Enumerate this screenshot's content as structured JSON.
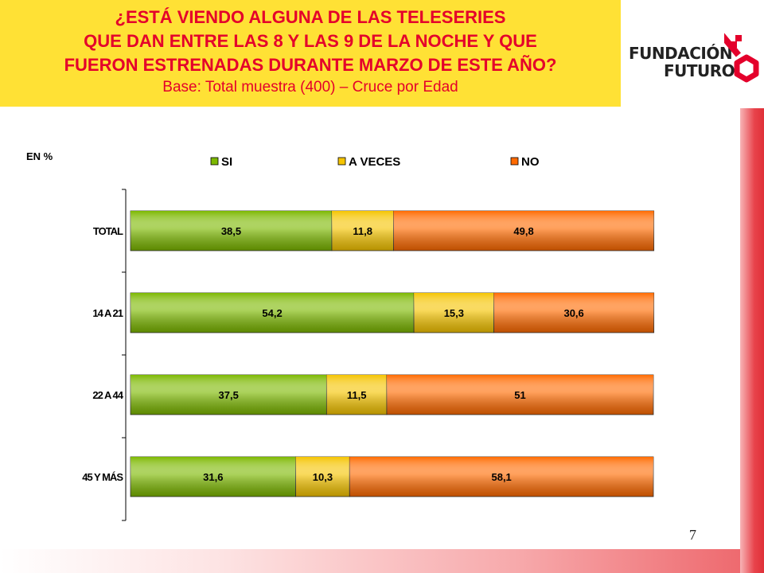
{
  "header": {
    "title_lines": [
      "¿ESTÁ VIENDO ALGUNA DE LAS TELESERIES",
      "QUE DAN ENTRE LAS 8 Y LAS 9 DE LA NOCHE Y QUE",
      "FUERON ESTRENADAS DURANTE MARZO DE ESTE AÑO?"
    ],
    "subtitle": "Base: Total muestra (400) – Cruce por Edad",
    "background_color": "#ffe135",
    "text_color": "#e4002b"
  },
  "logo": {
    "line1": "FUNDACIÓN",
    "line2": "FUTURO",
    "icon": "key-icon",
    "accent_color": "#e4002b"
  },
  "page_number": "7",
  "chart_data": {
    "type": "bar",
    "orientation": "horizontal",
    "stacked": true,
    "unit_label": "EN %",
    "categories": [
      "TOTAL",
      "14 A 21",
      "22 A 44",
      "45 Y MÁS"
    ],
    "series": [
      {
        "name": "SI",
        "values": [
          38.5,
          54.2,
          37.5,
          31.6
        ],
        "labels": [
          "38,5",
          "54,2",
          "37,5",
          "31,6"
        ],
        "color": "#7cb800"
      },
      {
        "name": "A VECES",
        "values": [
          11.8,
          15.3,
          11.5,
          10.3
        ],
        "labels": [
          "11,8",
          "15,3",
          "11,5",
          "10,3"
        ],
        "color": "#f5c400"
      },
      {
        "name": "NO",
        "values": [
          49.8,
          30.6,
          51,
          58.1
        ],
        "labels": [
          "49,8",
          "30,6",
          "51",
          "58,1"
        ],
        "color": "#ff6a00"
      }
    ],
    "xlim": [
      0,
      100
    ],
    "legend_position": "top",
    "grid": false
  }
}
